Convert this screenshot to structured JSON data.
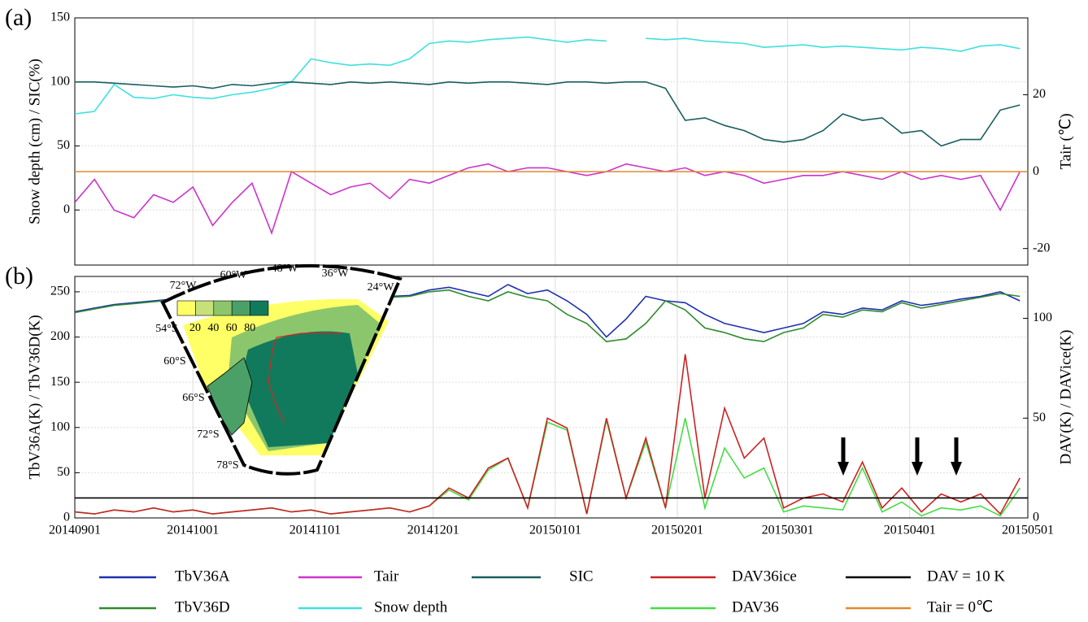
{
  "chart_data": [
    {
      "type": "line",
      "panel_label": "(a)",
      "ylabel": "Snow depth (cm) / SIC(%)",
      "y2label": "Tair (℃)",
      "x": [
        0,
        5,
        10,
        15,
        20,
        25,
        30,
        35,
        40,
        45,
        50,
        55,
        60,
        65,
        70,
        75,
        80,
        85,
        90,
        95,
        100,
        105,
        110,
        115,
        120,
        125,
        130,
        135,
        140,
        145,
        150,
        155,
        160,
        165,
        170,
        175,
        180,
        185,
        190,
        195,
        200,
        205,
        210,
        215,
        220,
        225,
        230,
        235,
        240
      ],
      "xlim": [
        0,
        242
      ],
      "xticks": [
        0,
        30,
        61,
        91,
        122,
        153,
        181,
        212,
        242
      ],
      "ylim": [
        -43,
        150
      ],
      "yticks": [
        0,
        50,
        100,
        150
      ],
      "y2lim": [
        -24.3,
        40
      ],
      "y2ticks": [
        -20,
        0,
        20
      ],
      "grid": true,
      "series": [
        {
          "name": "Snow depth",
          "color": "#40e0e0",
          "axis": "y",
          "values": [
            75,
            77,
            98,
            88,
            87,
            90,
            88,
            87,
            90,
            92,
            95,
            100,
            118,
            115,
            113,
            114,
            113,
            118,
            130,
            132,
            131,
            133,
            134,
            135,
            133,
            131,
            133,
            132,
            null,
            134,
            133,
            134,
            132,
            131,
            130,
            127,
            128,
            129,
            127,
            128,
            127,
            126,
            125,
            127,
            126,
            124,
            128,
            129,
            126
          ]
        },
        {
          "name": "SIC",
          "color": "#1a5e5e",
          "axis": "y",
          "values": [
            100,
            100,
            99,
            98,
            97,
            96,
            97,
            95,
            98,
            97,
            99,
            100,
            99,
            98,
            100,
            99,
            100,
            99,
            98,
            100,
            99,
            100,
            100,
            99,
            98,
            100,
            100,
            99,
            100,
            100,
            95,
            70,
            72,
            66,
            62,
            55,
            53,
            55,
            62,
            75,
            70,
            72,
            60,
            62,
            50,
            55,
            55,
            78,
            82
          ]
        },
        {
          "name": "Tair",
          "color": "#cc33cc",
          "axis": "y2",
          "values": [
            -8,
            -2,
            -10,
            -12,
            -6,
            -8,
            -4,
            -14,
            -8,
            -3,
            -16,
            0,
            -3,
            -6,
            -4,
            -3,
            -7,
            -2,
            -3,
            -1,
            1,
            2,
            0,
            1,
            1,
            0,
            -1,
            0,
            2,
            1,
            0,
            1,
            -1,
            0,
            -1,
            -3,
            -2,
            -1,
            -1,
            0,
            -1,
            -2,
            0,
            -2,
            -1,
            -2,
            -1,
            -10,
            0
          ]
        }
      ],
      "hlines": [
        {
          "name": "Tair = 0℃",
          "color": "#e08a2a",
          "axis": "y2",
          "value": 0
        }
      ]
    },
    {
      "type": "line",
      "panel_label": "(b)",
      "ylabel": "TbV36A(K) / TbV36D(K)",
      "y2label": "DAV(K) / DAVice(K)",
      "x": [
        0,
        5,
        10,
        15,
        20,
        25,
        30,
        35,
        40,
        45,
        50,
        55,
        60,
        65,
        70,
        75,
        80,
        85,
        90,
        95,
        100,
        105,
        110,
        115,
        120,
        125,
        130,
        135,
        140,
        145,
        150,
        155,
        160,
        165,
        170,
        175,
        180,
        185,
        190,
        195,
        200,
        205,
        210,
        215,
        220,
        225,
        230,
        235,
        240
      ],
      "xlim": [
        0,
        242
      ],
      "xticks": [
        {
          "value": 0,
          "label": "20140901"
        },
        {
          "value": 30,
          "label": "20141001"
        },
        {
          "value": 61,
          "label": "20141101"
        },
        {
          "value": 91,
          "label": "20141201"
        },
        {
          "value": 122,
          "label": "20150101"
        },
        {
          "value": 153,
          "label": "20150201"
        },
        {
          "value": 181,
          "label": "20150301"
        },
        {
          "value": 212,
          "label": "20150401"
        },
        {
          "value": 242,
          "label": "20150501"
        }
      ],
      "ylim": [
        0,
        267
      ],
      "yticks": [
        0,
        50,
        100,
        150,
        200,
        250
      ],
      "y2lim": [
        0,
        121
      ],
      "y2ticks": [
        0,
        50,
        100
      ],
      "grid": true,
      "series": [
        {
          "name": "TbV36A",
          "color": "#1f2fb0",
          "axis": "y",
          "values": [
            228,
            232,
            236,
            238,
            240,
            242,
            238,
            240,
            241,
            243,
            240,
            242,
            244,
            240,
            242,
            243,
            245,
            246,
            252,
            255,
            250,
            245,
            258,
            248,
            252,
            240,
            225,
            200,
            220,
            245,
            240,
            238,
            225,
            215,
            210,
            205,
            210,
            215,
            228,
            225,
            232,
            230,
            240,
            235,
            238,
            242,
            245,
            250,
            240
          ]
        },
        {
          "name": "TbV36D",
          "color": "#2e8b2e",
          "axis": "y",
          "values": [
            227,
            231,
            235,
            237,
            239,
            241,
            237,
            239,
            240,
            242,
            239,
            241,
            243,
            239,
            241,
            242,
            244,
            245,
            250,
            252,
            245,
            240,
            250,
            244,
            240,
            225,
            215,
            195,
            198,
            215,
            240,
            230,
            210,
            205,
            198,
            195,
            205,
            210,
            225,
            222,
            230,
            228,
            238,
            232,
            236,
            240,
            244,
            248,
            245
          ]
        },
        {
          "name": "DAV36",
          "color": "#44dd44",
          "axis": "y2",
          "values": [
            3,
            2,
            4,
            3,
            5,
            3,
            4,
            2,
            3,
            4,
            5,
            3,
            4,
            2,
            3,
            4,
            5,
            3,
            6,
            14,
            9,
            24,
            30,
            5,
            48,
            44,
            2,
            49,
            10,
            38,
            5,
            50,
            5,
            35,
            20,
            25,
            3,
            6,
            5,
            4,
            25,
            3,
            8,
            1,
            5,
            4,
            6,
            1,
            15
          ]
        },
        {
          "name": "DAV36ice",
          "color": "#cc2222",
          "axis": "y2",
          "values": [
            3,
            2,
            4,
            3,
            5,
            3,
            4,
            2,
            3,
            4,
            5,
            3,
            4,
            2,
            3,
            4,
            5,
            3,
            6,
            15,
            10,
            25,
            30,
            5,
            50,
            45,
            2,
            50,
            10,
            40,
            5,
            82,
            10,
            55,
            30,
            40,
            5,
            10,
            12,
            8,
            28,
            5,
            15,
            3,
            12,
            8,
            12,
            2,
            20
          ]
        }
      ],
      "hlines": [
        {
          "name": "DAV = 10 K",
          "color": "#000000",
          "axis": "y2",
          "value": 10
        }
      ]
    }
  ],
  "inset": {
    "lon_labels": [
      "72°W",
      "60°W",
      "48°W",
      "36°W",
      "24°W"
    ],
    "lat_labels": [
      "54°S",
      "60°S",
      "66°S",
      "72°S",
      "78°S"
    ],
    "colorbar_ticks": [
      20,
      40,
      60,
      80
    ]
  }
}
